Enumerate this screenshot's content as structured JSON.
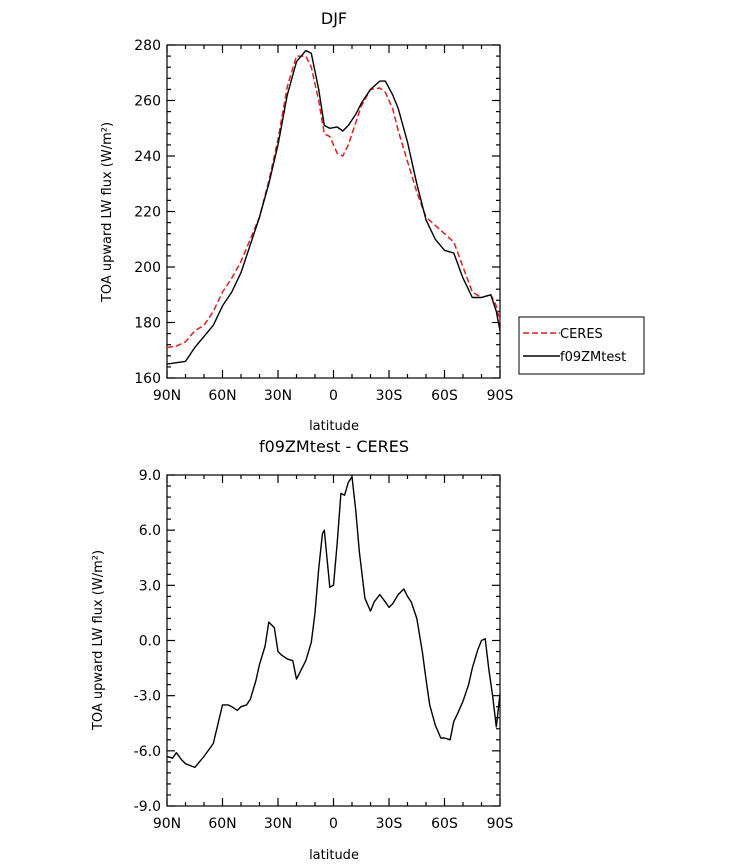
{
  "chart_data": [
    {
      "type": "line",
      "title": "DJF",
      "xlabel": "latitude",
      "ylabel": "TOA upward LW flux (W/m²)",
      "x": [
        90,
        85,
        80,
        75,
        70,
        65,
        60,
        55,
        50,
        45,
        40,
        35,
        30,
        25,
        20,
        15,
        12,
        8,
        5,
        2,
        -2,
        -5,
        -8,
        -12,
        -15,
        -20,
        -25,
        -28,
        -32,
        -35,
        -40,
        -45,
        -50,
        -55,
        -60,
        -65,
        -70,
        -75,
        -80,
        -85,
        -88,
        -90
      ],
      "xticks": [
        "90N",
        "60N",
        "30N",
        "0",
        "30S",
        "60S",
        "90S"
      ],
      "xtick_values": [
        90,
        60,
        30,
        0,
        -30,
        -60,
        -90
      ],
      "xlim": [
        90,
        -90
      ],
      "ylim": [
        160,
        280
      ],
      "yticks": [
        160,
        180,
        200,
        220,
        240,
        260,
        280
      ],
      "legend": "right",
      "series": [
        {
          "name": "CERES",
          "color": "#e0201e",
          "dash": true,
          "values": [
            171,
            171.5,
            173,
            177,
            179,
            184,
            191,
            196,
            202,
            210,
            218,
            231,
            246,
            265,
            276,
            276,
            272,
            260,
            248,
            247,
            241,
            240,
            244,
            252,
            258,
            264,
            264.5,
            263,
            257,
            249,
            238,
            227,
            218,
            215,
            212,
            209,
            200,
            191,
            189,
            190,
            186,
            180
          ]
        },
        {
          "name": "f09ZMtest",
          "color": "#000000",
          "dash": false,
          "values": [
            165,
            165.5,
            166,
            171,
            175,
            179,
            186,
            191,
            198,
            208,
            218,
            230,
            244,
            262,
            274,
            278,
            277,
            264,
            251,
            250,
            250.5,
            249,
            251,
            255,
            259,
            264,
            267,
            267,
            262,
            257,
            245,
            230,
            217,
            210,
            206,
            205,
            196,
            189,
            189,
            190,
            184,
            177
          ]
        }
      ]
    },
    {
      "type": "line",
      "title": "f09ZMtest - CERES",
      "xlabel": "latitude",
      "ylabel": "TOA upward LW flux (W/m²)",
      "x": [
        90,
        87,
        85,
        82,
        80,
        75,
        70,
        65,
        60,
        57,
        55,
        52,
        50,
        47,
        45,
        42,
        40,
        37,
        35,
        32,
        30,
        28,
        25,
        22,
        20,
        18,
        15,
        12,
        10,
        8,
        6,
        5,
        2,
        0,
        -2,
        -4,
        -6,
        -8,
        -10,
        -12,
        -14,
        -17,
        -20,
        -22,
        -25,
        -28,
        -30,
        -32,
        -35,
        -38,
        -40,
        -42,
        -45,
        -48,
        -50,
        -52,
        -55,
        -58,
        -60,
        -63,
        -65,
        -67,
        -70,
        -73,
        -75,
        -78,
        -80,
        -82,
        -84,
        -86,
        -88,
        -90
      ],
      "xticks": [
        "90N",
        "60N",
        "30N",
        "0",
        "30S",
        "60S",
        "90S"
      ],
      "xtick_values": [
        90,
        60,
        30,
        0,
        -30,
        -60,
        -90
      ],
      "xlim": [
        90,
        -90
      ],
      "ylim": [
        -9,
        9
      ],
      "yticks": [
        "-9.0",
        "-6.0",
        "-3.0",
        "0.0",
        "3.0",
        "6.0",
        "9.0"
      ],
      "ytick_values": [
        -9,
        -6,
        -3,
        0,
        3,
        6,
        9
      ],
      "series": [
        {
          "color": "#000000",
          "values": [
            -6.3,
            -6.4,
            -6.1,
            -6.5,
            -6.7,
            -6.9,
            -6.3,
            -5.6,
            -3.5,
            -3.5,
            -3.6,
            -3.8,
            -3.6,
            -3.5,
            -3.2,
            -2.2,
            -1.3,
            -0.3,
            1.0,
            0.7,
            -0.6,
            -0.8,
            -1.0,
            -1.1,
            -2.1,
            -1.7,
            -1.1,
            -0.1,
            1.5,
            3.9,
            5.8,
            6.0,
            2.9,
            3.0,
            5.3,
            8.0,
            7.9,
            8.6,
            8.9,
            7.1,
            4.8,
            2.3,
            1.6,
            2.1,
            2.5,
            2.1,
            1.8,
            2.0,
            2.5,
            2.8,
            2.4,
            2.1,
            1.2,
            -0.6,
            -2.1,
            -3.5,
            -4.6,
            -5.3,
            -5.3,
            -5.4,
            -4.4,
            -4.0,
            -3.3,
            -2.4,
            -1.5,
            -0.5,
            0.0,
            0.1,
            -1.6,
            -3.0,
            -4.7,
            -2.9
          ]
        }
      ]
    }
  ]
}
